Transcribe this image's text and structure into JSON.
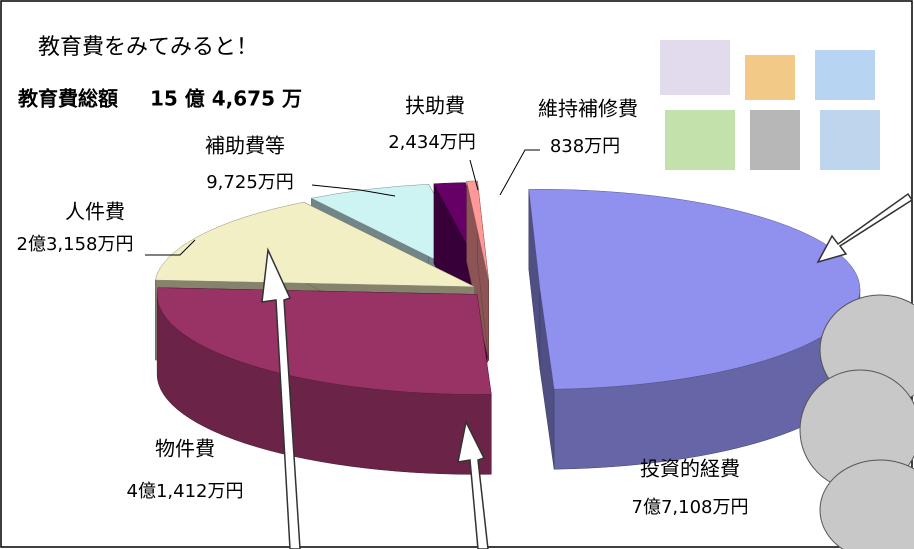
{
  "chart_data": {
    "type": "pie",
    "title": "教育費をみてみると！",
    "total_name": "教育費総額",
    "total_label": "15 億 4,675 万",
    "categories": [
      "投資的経費",
      "物件費",
      "人件費",
      "補助費等",
      "扶助費",
      "維持補修費"
    ],
    "values": [
      77108,
      41412,
      23158,
      9725,
      2434,
      838
    ],
    "value_labels": [
      "7億7,108万円",
      "4億1,412万円",
      "2億3,158万円",
      "9,725万円",
      "2,434万円",
      "838万円"
    ],
    "colors": [
      "#9090ee",
      "#993366",
      "#f3efc4",
      "#cdf3f3",
      "#660066",
      "#ff9999"
    ]
  }
}
